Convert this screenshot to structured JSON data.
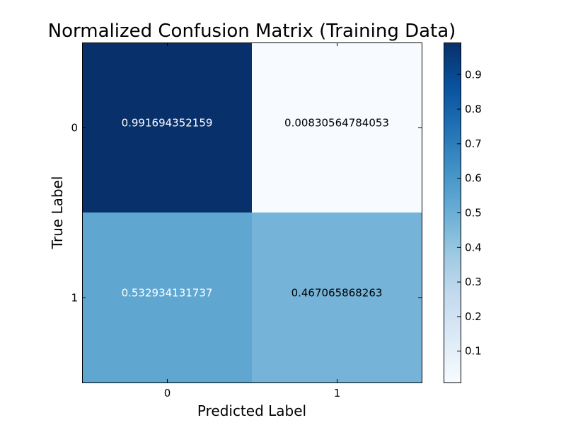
{
  "chart_data": {
    "type": "heatmap",
    "title": "Normalized Confusion Matrix (Training Data)",
    "xlabel": "Predicted Label",
    "ylabel": "True Label",
    "x_categories": [
      "0",
      "1"
    ],
    "y_categories": [
      "0",
      "1"
    ],
    "values": [
      [
        0.991694352159,
        0.00830564784053
      ],
      [
        0.532934131737,
        0.467065868263
      ]
    ],
    "cell_labels": [
      [
        "0.991694352159",
        "0.00830564784053"
      ],
      [
        "0.532934131737",
        "0.467065868263"
      ]
    ],
    "colormap": "Blues",
    "color_range": [
      0.00830564784053,
      0.991694352159
    ],
    "colorbar_ticks": [
      "0.1",
      "0.2",
      "0.3",
      "0.4",
      "0.5",
      "0.6",
      "0.7",
      "0.8",
      "0.9"
    ],
    "colors": {
      "cell_0_0": "#08306b",
      "cell_0_1": "#f7fbff",
      "cell_1_0": "#5fa6d1",
      "cell_1_1": "#75b4d8",
      "text_on_dark": "#ffffff",
      "text_on_light": "#000000"
    }
  }
}
